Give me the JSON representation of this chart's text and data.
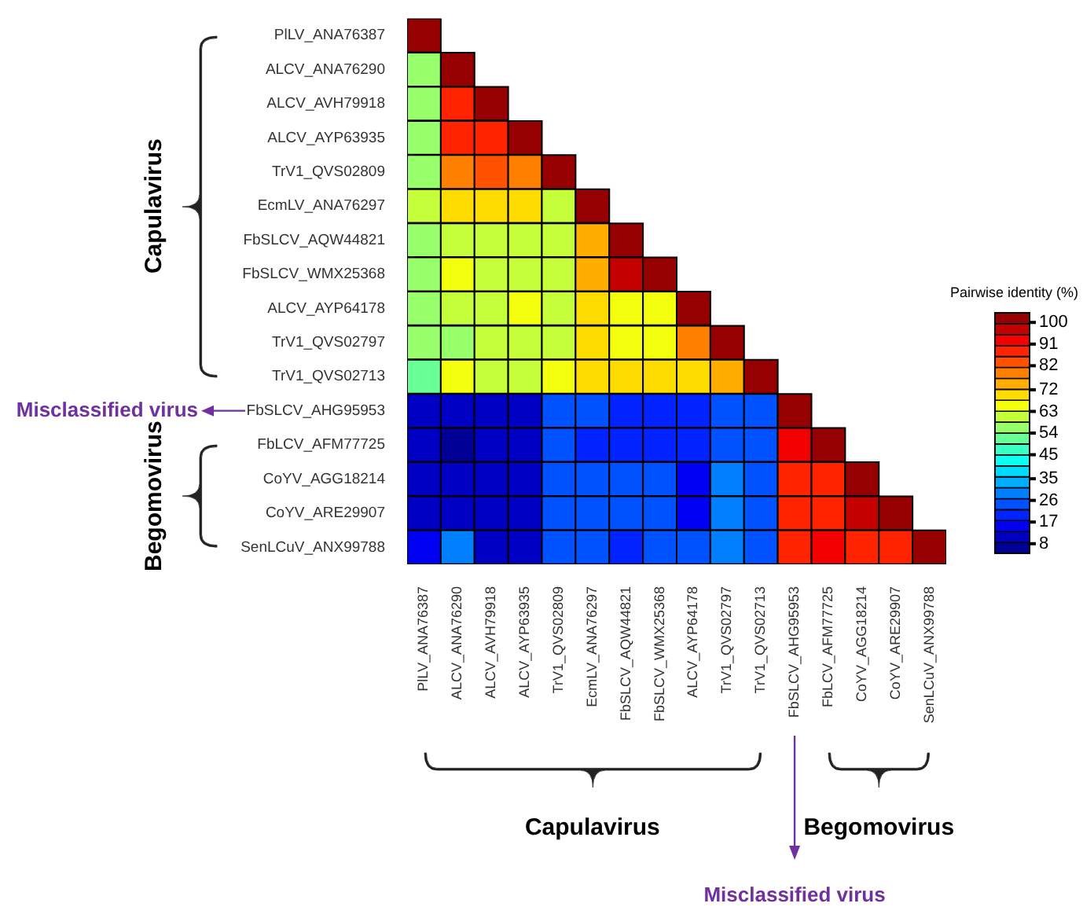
{
  "chart_data": {
    "type": "heatmap",
    "clabel": "Pairwise identity (%)",
    "categories": [
      "PlLV_ANA76387",
      "ALCV_ANA76290",
      "ALCV_AVH79918",
      "ALCV_AYP63935",
      "TrV1_QVS02809",
      "EcmLV_ANA76297",
      "FbSLCV_AQW44821",
      "FbSLCV_WMX25368",
      "ALCV_AYP64178",
      "TrV1_QVS02797",
      "TrV1_QVS02713",
      "FbSLCV_AHG95953",
      "FbLCV_AFM77725",
      "CoYV_AGG18214",
      "CoYV_ARE29907",
      "SenLCuV_ANX99788"
    ],
    "y_categories": [
      "PlLV_ANA76387",
      "ALCV_ANA76290",
      "ALCV_AVH79918",
      "ALCV_AYP63935",
      "TrV1_QVS02809",
      "EcmLV_ANA76297",
      "FbSLCV_AQW44821",
      "FbSLCV_WMX25368",
      "ALCV_AYP64178",
      "TrV1_QVS02797",
      "TrV1_QVS02713",
      "FbSLCV_AHG95953",
      "FbLCV_AFM77725",
      "CoYV_AGG18214",
      "CoYV_ARE29907",
      "SenLCuV_ANX99788"
    ],
    "cells": [
      [
        100,
        null,
        null,
        null,
        null,
        null,
        null,
        null,
        null,
        null,
        null,
        null,
        null,
        null,
        null,
        null
      ],
      [
        55,
        100,
        null,
        null,
        null,
        null,
        null,
        null,
        null,
        null,
        null,
        null,
        null,
        null,
        null,
        null
      ],
      [
        55,
        90,
        100,
        null,
        null,
        null,
        null,
        null,
        null,
        null,
        null,
        null,
        null,
        null,
        null,
        null
      ],
      [
        55,
        90,
        90,
        100,
        null,
        null,
        null,
        null,
        null,
        null,
        null,
        null,
        null,
        null,
        null,
        null
      ],
      [
        55,
        80,
        84,
        80,
        100,
        null,
        null,
        null,
        null,
        null,
        null,
        null,
        null,
        null,
        null,
        null
      ],
      [
        60,
        68,
        68,
        68,
        63,
        100,
        null,
        null,
        null,
        null,
        null,
        null,
        null,
        null,
        null,
        null
      ],
      [
        58,
        62,
        60,
        62,
        60,
        74,
        100,
        null,
        null,
        null,
        null,
        null,
        null,
        null,
        null,
        null
      ],
      [
        58,
        64,
        62,
        62,
        60,
        74,
        96,
        100,
        null,
        null,
        null,
        null,
        null,
        null,
        null,
        null
      ],
      [
        56,
        62,
        62,
        64,
        62,
        68,
        66,
        66,
        100,
        null,
        null,
        null,
        null,
        null,
        null,
        null
      ],
      [
        56,
        58,
        60,
        59,
        62,
        68,
        66,
        66,
        78,
        100,
        null,
        null,
        null,
        null,
        null,
        null
      ],
      [
        52,
        64,
        62,
        62,
        64,
        70,
        70,
        68,
        70,
        75,
        100,
        null,
        null,
        null,
        null,
        null
      ],
      [
        12,
        10,
        10,
        10,
        24,
        24,
        22,
        22,
        20,
        24,
        26,
        100,
        null,
        null,
        null,
        null
      ],
      [
        10,
        8,
        10,
        9,
        24,
        22,
        22,
        20,
        22,
        24,
        24,
        93,
        100,
        null,
        null,
        null
      ],
      [
        10,
        10,
        10,
        9,
        24,
        26,
        24,
        24,
        14,
        30,
        26,
        89,
        89,
        100,
        null,
        null
      ],
      [
        10,
        10,
        10,
        10,
        24,
        26,
        24,
        24,
        14,
        30,
        24,
        89,
        89,
        97,
        100,
        null
      ],
      [
        14,
        28,
        12,
        12,
        24,
        24,
        22,
        24,
        26,
        30,
        26,
        89,
        92,
        89,
        89,
        100
      ]
    ],
    "clim": [
      4,
      104
    ],
    "cticks": [
      8,
      17,
      26,
      35,
      45,
      54,
      63,
      72,
      82,
      91,
      100
    ],
    "annotations": [
      "Capulavirus",
      "Begomovirus",
      "Misclassified virus",
      "Capulavirus",
      "Begomovirus",
      "Misclassified virus"
    ]
  }
}
